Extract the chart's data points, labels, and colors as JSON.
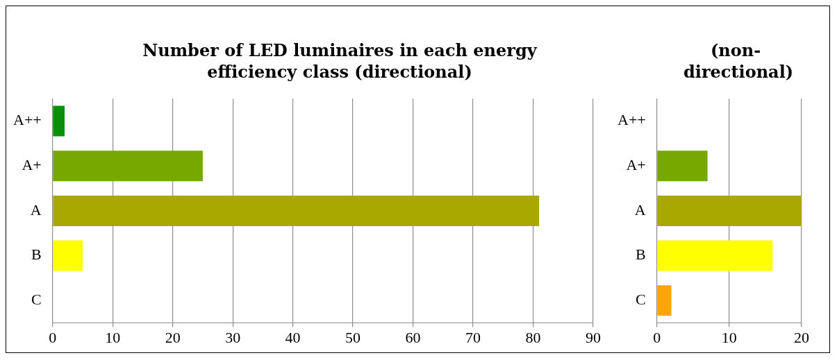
{
  "chart_data": [
    {
      "type": "bar",
      "orientation": "horizontal",
      "title": "Number of LED luminaires in each energy efficiency class (directional)",
      "categories": [
        "A++",
        "A+",
        "A",
        "B",
        "C"
      ],
      "values": [
        2,
        25,
        81,
        5,
        0
      ],
      "colors": [
        "#0a8f0a",
        "#76a800",
        "#a8a800",
        "#ffff00",
        "#ffa500"
      ],
      "xlim": [
        0,
        90
      ],
      "xticks": [
        0,
        10,
        20,
        30,
        40,
        50,
        60,
        70,
        80,
        90
      ],
      "grid": "x",
      "legend": false
    },
    {
      "type": "bar",
      "orientation": "horizontal",
      "title": "(non-directional)",
      "categories": [
        "A++",
        "A+",
        "A",
        "B",
        "C"
      ],
      "values": [
        0,
        7,
        20,
        16,
        2
      ],
      "colors": [
        "#0a8f0a",
        "#76a800",
        "#a8a800",
        "#ffff00",
        "#ffa500"
      ],
      "xlim": [
        0,
        20
      ],
      "xticks": [
        0,
        10,
        20
      ],
      "grid": "x",
      "legend": false
    }
  ]
}
